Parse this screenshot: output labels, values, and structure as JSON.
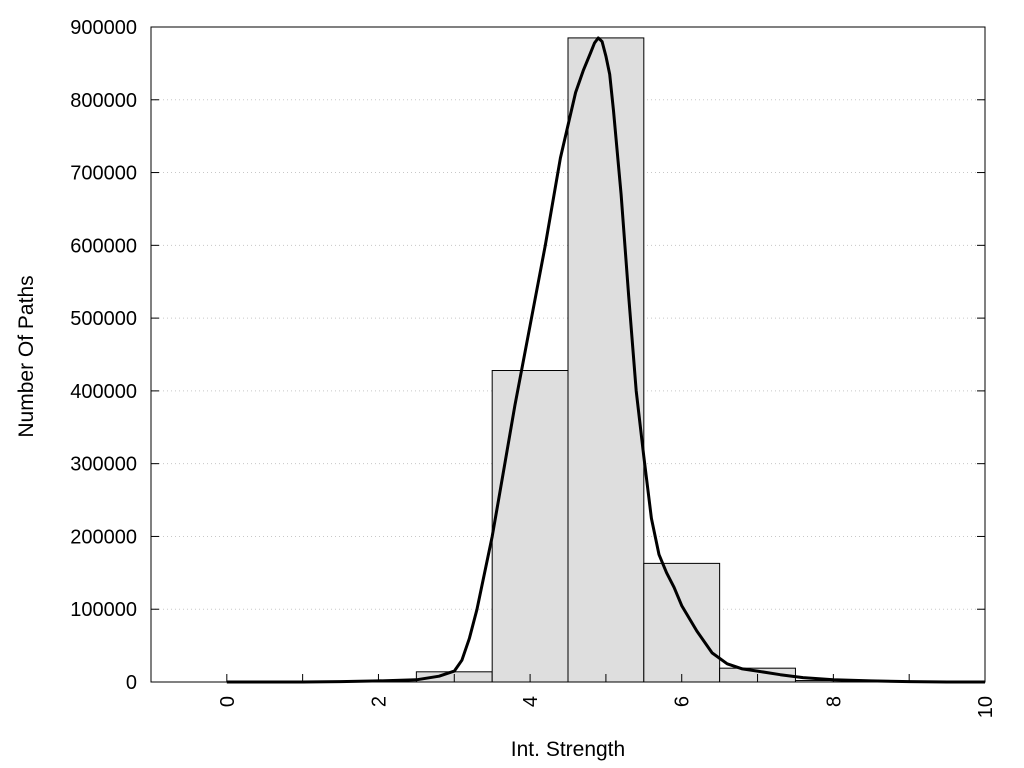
{
  "chart_data": {
    "type": "bar",
    "title": "",
    "xlabel": "Int. Strength",
    "ylabel": "Number Of Paths",
    "xlim": [
      -1,
      10
    ],
    "ylim": [
      0,
      900000
    ],
    "grid": "horizontal dotted",
    "legend": "none",
    "x_ticks": [
      0,
      2,
      4,
      6,
      8,
      10
    ],
    "y_ticks": [
      0,
      100000,
      200000,
      300000,
      400000,
      500000,
      600000,
      700000,
      800000,
      900000
    ],
    "bar_width": 1,
    "bars": [
      {
        "x": 0,
        "value": 0
      },
      {
        "x": 1,
        "value": 0
      },
      {
        "x": 2,
        "value": 0
      },
      {
        "x": 3,
        "value": 14000
      },
      {
        "x": 4,
        "value": 428000
      },
      {
        "x": 5,
        "value": 885000
      },
      {
        "x": 6,
        "value": 163000
      },
      {
        "x": 7,
        "value": 19000
      },
      {
        "x": 8,
        "value": 2000
      },
      {
        "x": 9,
        "value": 0
      }
    ],
    "fit_curve": {
      "x": [
        0,
        0.5,
        1,
        1.5,
        2,
        2.5,
        2.8,
        3,
        3.1,
        3.2,
        3.3,
        3.4,
        3.5,
        3.6,
        3.8,
        4,
        4.2,
        4.4,
        4.6,
        4.7,
        4.8,
        4.85,
        4.9,
        4.95,
        5,
        5.05,
        5.1,
        5.2,
        5.3,
        5.4,
        5.5,
        5.6,
        5.7,
        5.8,
        5.9,
        6,
        6.2,
        6.4,
        6.6,
        6.8,
        7,
        7.3,
        7.6,
        8,
        8.5,
        9,
        9.5,
        10
      ],
      "y": [
        0,
        0,
        0,
        500,
        1500,
        3000,
        8000,
        15000,
        30000,
        60000,
        100000,
        150000,
        200000,
        260000,
        380000,
        490000,
        600000,
        720000,
        810000,
        840000,
        865000,
        878000,
        885000,
        880000,
        860000,
        835000,
        785000,
        670000,
        530000,
        400000,
        310000,
        225000,
        175000,
        150000,
        130000,
        105000,
        70000,
        40000,
        25000,
        18000,
        15000,
        10000,
        6000,
        3000,
        1500,
        500,
        0,
        0
      ],
      "color": "#000000"
    },
    "colors": {
      "bar_fill": "#dedede",
      "bar_edge": "#000000"
    }
  }
}
